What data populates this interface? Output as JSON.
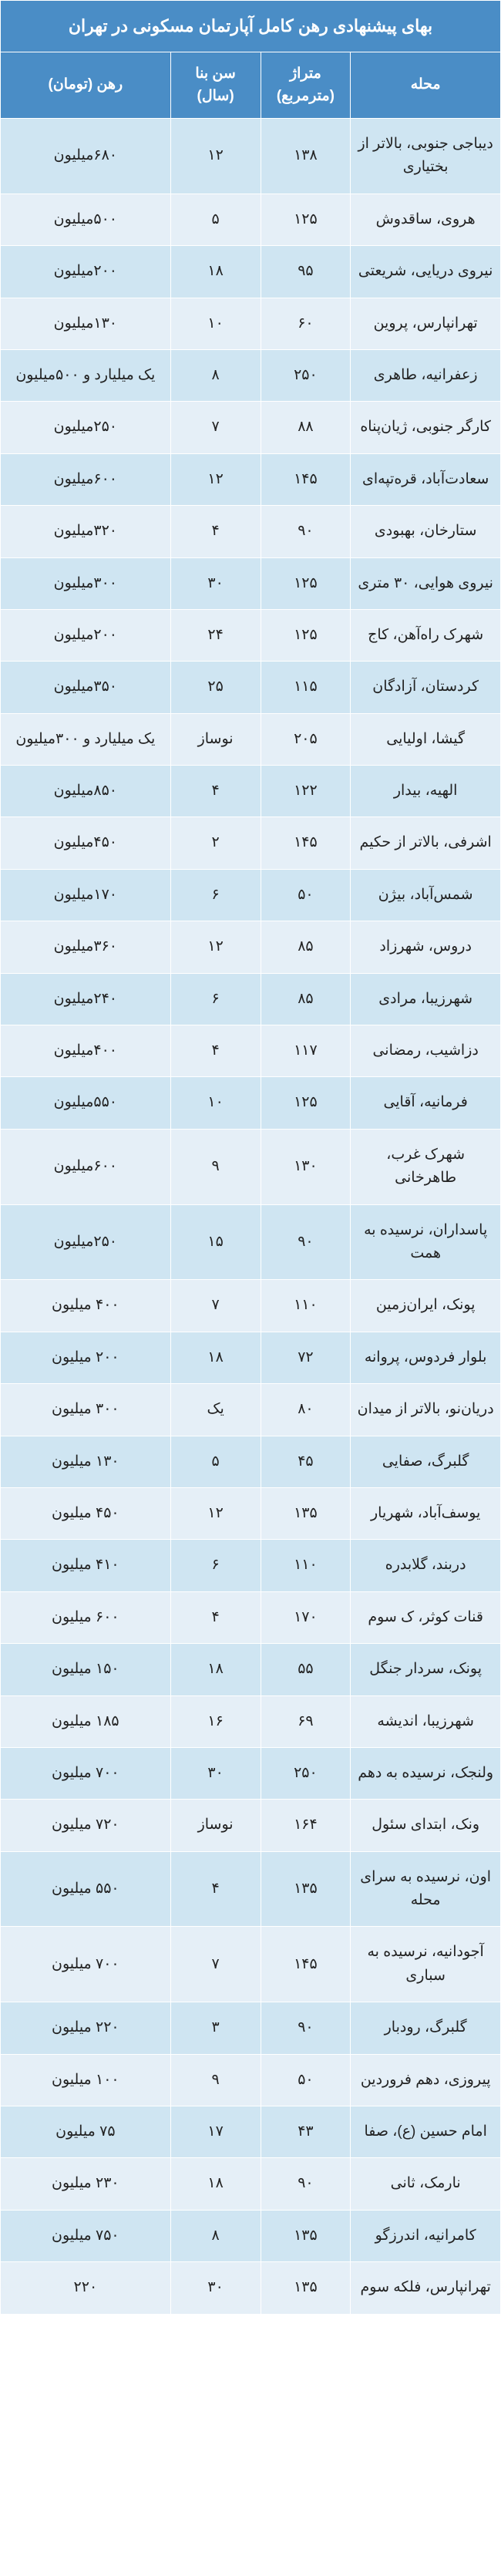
{
  "title": "بهای پیشنهادی رهن کامل آپارتمان مسکونی در تهران",
  "columns": {
    "neighborhood": "محله",
    "area": "متراژ (مترمربع)",
    "age": "سن بنا (سال)",
    "rent": "رهن (تومان)"
  },
  "colors": {
    "header_bg": "#4a8dc6",
    "header_fg": "#ffffff",
    "row_even": "#cfe5f2",
    "row_odd": "#e5eff7",
    "border": "#ffffff"
  },
  "rows": [
    {
      "neighborhood": "دیباجی جنوبی، بالاتر از بختیاری",
      "area": "۱۳۸",
      "age": "۱۲",
      "rent": "۶۸۰میلیون"
    },
    {
      "neighborhood": "هروی، ساقدوش",
      "area": "۱۲۵",
      "age": "۵",
      "rent": "۵۰۰میلیون"
    },
    {
      "neighborhood": "نیروی دریایی، شریعتی",
      "area": "۹۵",
      "age": "۱۸",
      "rent": "۲۰۰میلیون"
    },
    {
      "neighborhood": "تهرانپارس، پروین",
      "area": "۶۰",
      "age": "۱۰",
      "rent": "۱۳۰میلیون"
    },
    {
      "neighborhood": "زعفرانیه، طاهری",
      "area": "۲۵۰",
      "age": "۸",
      "rent": "یک میلیارد و ۵۰۰میلیون"
    },
    {
      "neighborhood": "کارگر جنوبی، ژیان‌پناه",
      "area": "۸۸",
      "age": "۷",
      "rent": "۲۵۰میلیون"
    },
    {
      "neighborhood": "سعادت‌آباد، قره‌تپه‌ای",
      "area": "۱۴۵",
      "age": "۱۲",
      "rent": "۶۰۰میلیون"
    },
    {
      "neighborhood": "ستارخان، بهبودی",
      "area": "۹۰",
      "age": "۴",
      "rent": "۳۲۰میلیون"
    },
    {
      "neighborhood": "نیروی هوایی، ۳۰ متری",
      "area": "۱۲۵",
      "age": "۳۰",
      "rent": "۳۰۰میلیون"
    },
    {
      "neighborhood": "شهرک راه‌آهن، کاج",
      "area": "۱۲۵",
      "age": "۲۴",
      "rent": "۲۰۰میلیون"
    },
    {
      "neighborhood": "کردستان، آزادگان",
      "area": "۱۱۵",
      "age": "۲۵",
      "rent": "۳۵۰میلیون"
    },
    {
      "neighborhood": "گیشا، اولیایی",
      "area": "۲۰۵",
      "age": "نوساز",
      "rent": "یک میلیارد و ۳۰۰میلیون"
    },
    {
      "neighborhood": "الهیه، بیدار",
      "area": "۱۲۲",
      "age": "۴",
      "rent": "۸۵۰میلیون"
    },
    {
      "neighborhood": "اشرفی، بالاتر از حکیم",
      "area": "۱۴۵",
      "age": "۲",
      "rent": "۴۵۰میلیون"
    },
    {
      "neighborhood": "شمس‌آباد، بیژن",
      "area": "۵۰",
      "age": "۶",
      "rent": "۱۷۰میلیون"
    },
    {
      "neighborhood": "دروس، شهرزاد",
      "area": "۸۵",
      "age": "۱۲",
      "rent": "۳۶۰میلیون"
    },
    {
      "neighborhood": "شهرزیبا، مرادی",
      "area": "۸۵",
      "age": "۶",
      "rent": "۲۴۰میلیون"
    },
    {
      "neighborhood": "دزاشیب، رمضانی",
      "area": "۱۱۷",
      "age": "۴",
      "rent": "۴۰۰میلیون"
    },
    {
      "neighborhood": "فرمانیه، آقایی",
      "area": "۱۲۵",
      "age": "۱۰",
      "rent": "۵۵۰میلیون"
    },
    {
      "neighborhood": "شهرک غرب، طاهرخانی",
      "area": "۱۳۰",
      "age": "۹",
      "rent": "۶۰۰میلیون"
    },
    {
      "neighborhood": "پاسداران، نرسیده به همت",
      "area": "۹۰",
      "age": "۱۵",
      "rent": "۲۵۰میلیون"
    },
    {
      "neighborhood": "پونک، ایران‌زمین",
      "area": "۱۱۰",
      "age": "۷",
      "rent": "۴۰۰ میلیون"
    },
    {
      "neighborhood": "بلوار فردوس، پروانه",
      "area": "۷۲",
      "age": "۱۸",
      "rent": "۲۰۰ میلیون"
    },
    {
      "neighborhood": "دریان‌نو، بالاتر از میدان",
      "area": "۸۰",
      "age": "یک",
      "rent": "۳۰۰ میلیون"
    },
    {
      "neighborhood": "گلبرگ، صفایی",
      "area": "۴۵",
      "age": "۵",
      "rent": "۱۳۰ میلیون"
    },
    {
      "neighborhood": "یوسف‌آباد، شهریار",
      "area": "۱۳۵",
      "age": "۱۲",
      "rent": "۴۵۰ میلیون"
    },
    {
      "neighborhood": "دربند، گلابدره",
      "area": "۱۱۰",
      "age": "۶",
      "rent": "۴۱۰ میلیون"
    },
    {
      "neighborhood": "قنات کوثر، ک سوم",
      "area": "۱۷۰",
      "age": "۴",
      "rent": "۶۰۰ میلیون"
    },
    {
      "neighborhood": "پونک، سردار جنگل",
      "area": "۵۵",
      "age": "۱۸",
      "rent": "۱۵۰ میلیون"
    },
    {
      "neighborhood": "شهرزیبا، اندیشه",
      "area": "۶۹",
      "age": "۱۶",
      "rent": "۱۸۵ میلیون"
    },
    {
      "neighborhood": "ولنجک، نرسیده به دهم",
      "area": "۲۵۰",
      "age": "۳۰",
      "rent": "۷۰۰ میلیون"
    },
    {
      "neighborhood": "ونک، ابتدای سئول",
      "area": "۱۶۴",
      "age": "نوساز",
      "rent": "۷۲۰ میلیون"
    },
    {
      "neighborhood": "اون، نرسیده به سرای محله",
      "area": "۱۳۵",
      "age": "۴",
      "rent": "۵۵۰ میلیون"
    },
    {
      "neighborhood": "آجودانیه، نرسیده به سباری",
      "area": "۱۴۵",
      "age": "۷",
      "rent": "۷۰۰ میلیون"
    },
    {
      "neighborhood": "گلبرگ، رودبار",
      "area": "۹۰",
      "age": "۳",
      "rent": "۲۲۰ میلیون"
    },
    {
      "neighborhood": "پیروزی، دهم فروردین",
      "area": "۵۰",
      "age": "۹",
      "rent": "۱۰۰ میلیون"
    },
    {
      "neighborhood": "امام حسین (ع)، صفا",
      "area": "۴۳",
      "age": "۱۷",
      "rent": "۷۵ میلیون"
    },
    {
      "neighborhood": "نارمک، ثانی",
      "area": "۹۰",
      "age": "۱۸",
      "rent": "۲۳۰ میلیون"
    },
    {
      "neighborhood": "کامرانیه، اندرزگو",
      "area": "۱۳۵",
      "age": "۸",
      "rent": "۷۵۰ میلیون"
    },
    {
      "neighborhood": "تهرانپارس، فلکه سوم",
      "area": "۱۳۵",
      "age": "۳۰",
      "rent": "۲۲۰"
    }
  ]
}
